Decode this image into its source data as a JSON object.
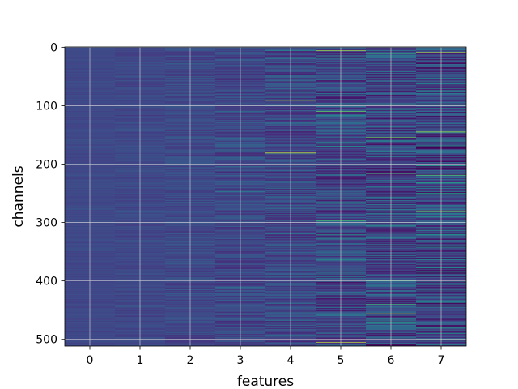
{
  "chart_data": {
    "type": "heatmap",
    "title": "",
    "xlabel": "features",
    "ylabel": "channels",
    "x_ticks": [
      0,
      1,
      2,
      3,
      4,
      5,
      6,
      7
    ],
    "y_ticks": [
      0,
      100,
      200,
      300,
      400,
      500
    ],
    "xlim": [
      -0.5,
      7.5
    ],
    "ylim": [
      511.5,
      -0.5
    ],
    "y_axis_inverted": true,
    "rows": 512,
    "columns": 8,
    "colormap": "viridis",
    "grid": true,
    "colorbar": false,
    "column_contrast": [
      0.1,
      0.16,
      0.24,
      0.34,
      0.46,
      0.58,
      0.7,
      0.82
    ],
    "bright_cells": [
      {
        "feature": 4,
        "channel": 181,
        "level": 0.97
      },
      {
        "feature": 4,
        "channel": 91,
        "level": 0.9
      },
      {
        "feature": 5,
        "channel": 6,
        "level": 0.92
      },
      {
        "feature": 5,
        "channel": 110,
        "level": 0.85
      },
      {
        "feature": 5,
        "channel": 297,
        "level": 0.8
      },
      {
        "feature": 5,
        "channel": 505,
        "level": 0.95
      },
      {
        "feature": 6,
        "channel": 154,
        "level": 0.85
      },
      {
        "feature": 6,
        "channel": 216,
        "level": 0.82
      },
      {
        "feature": 6,
        "channel": 400,
        "level": 0.8
      },
      {
        "feature": 6,
        "channel": 456,
        "level": 0.88
      },
      {
        "feature": 7,
        "channel": 9,
        "level": 0.95
      },
      {
        "feature": 7,
        "channel": 232,
        "level": 0.75
      }
    ]
  }
}
